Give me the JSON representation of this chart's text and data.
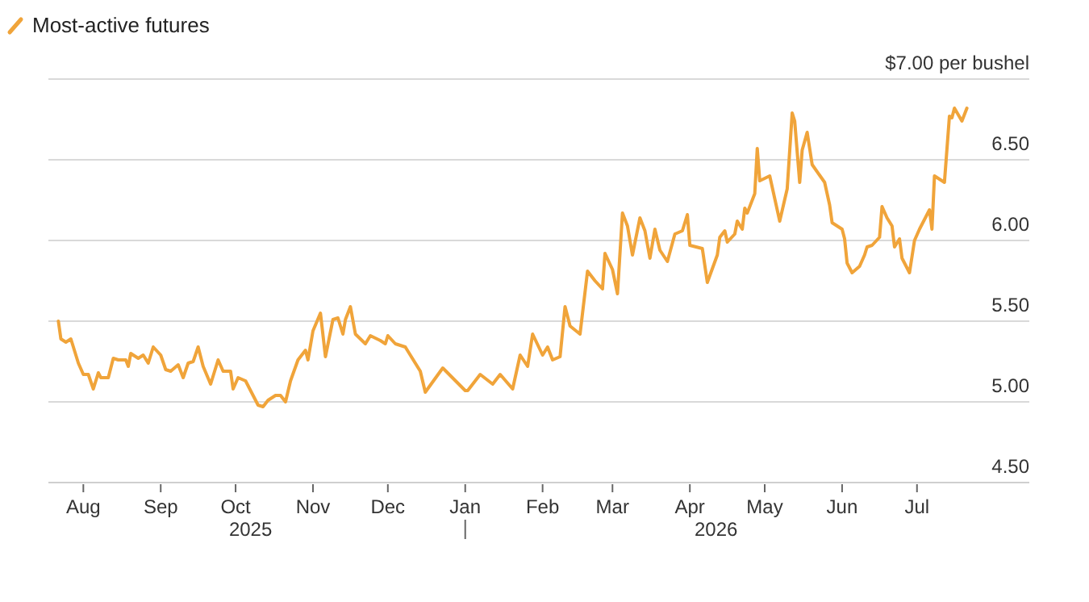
{
  "chart_data": {
    "type": "line",
    "legend": "top left",
    "grid": "y",
    "annotations": [
      "2025",
      "2026"
    ],
    "xlim": [
      "2025-07-18",
      "2026-08-15"
    ],
    "xticks": [
      {
        "value": "2025-08-01",
        "label": "Aug"
      },
      {
        "value": "2025-09-01",
        "label": "Sep"
      },
      {
        "value": "2025-10-01",
        "label": "Oct"
      },
      {
        "value": "2025-11-01",
        "label": "Nov"
      },
      {
        "value": "2025-12-01",
        "label": "Dec"
      },
      {
        "value": "2026-01-01",
        "label": "Jan"
      },
      {
        "value": "2026-02-01",
        "label": "Feb"
      },
      {
        "value": "2026-03-01",
        "label": "Mar"
      },
      {
        "value": "2026-04-01",
        "label": "Apr"
      },
      {
        "value": "2026-05-01",
        "label": "May"
      },
      {
        "value": "2026-06-01",
        "label": "Jun"
      },
      {
        "value": "2026-07-01",
        "label": "Jul"
      }
    ],
    "ylim": [
      4.5,
      7
    ],
    "yticks": [
      {
        "value": 4.5,
        "label": "4.50"
      },
      {
        "value": 5,
        "label": "5.00"
      },
      {
        "value": 5.5,
        "label": "5.50"
      },
      {
        "value": 6,
        "label": "6.00"
      },
      {
        "value": 6.5,
        "label": "6.50"
      },
      {
        "value": 7,
        "label": "$7.00 per bushel"
      }
    ],
    "x": [
      "2025-07-22",
      "2025-07-23",
      "2025-07-25",
      "2025-07-27",
      "2025-07-30",
      "2025-08-01",
      "2025-08-03",
      "2025-08-05",
      "2025-08-07",
      "2025-08-08",
      "2025-08-11",
      "2025-08-13",
      "2025-08-15",
      "2025-08-18",
      "2025-08-19",
      "2025-08-20",
      "2025-08-23",
      "2025-08-25",
      "2025-08-27",
      "2025-08-29",
      "2025-09-01",
      "2025-09-03",
      "2025-09-05",
      "2025-09-08",
      "2025-09-10",
      "2025-09-12",
      "2025-09-14",
      "2025-09-16",
      "2025-09-18",
      "2025-09-21",
      "2025-09-24",
      "2025-09-26",
      "2025-09-29",
      "2025-09-30",
      "2025-10-02",
      "2025-10-05",
      "2025-10-07",
      "2025-10-10",
      "2025-10-12",
      "2025-10-14",
      "2025-10-17",
      "2025-10-19",
      "2025-10-21",
      "2025-10-23",
      "2025-10-26",
      "2025-10-29",
      "2025-10-30",
      "2025-11-01",
      "2025-11-04",
      "2025-11-06",
      "2025-11-09",
      "2025-11-11",
      "2025-11-13",
      "2025-11-14",
      "2025-11-16",
      "2025-11-18",
      "2025-11-22",
      "2025-11-24",
      "2025-11-28",
      "2025-11-30",
      "2025-12-01",
      "2025-12-04",
      "2025-12-08",
      "2025-12-10",
      "2025-12-14",
      "2025-12-16",
      "2025-12-23",
      "2026-01-01",
      "2026-01-02",
      "2026-01-07",
      "2026-01-12",
      "2026-01-15",
      "2026-01-20",
      "2026-01-23",
      "2026-01-26",
      "2026-01-28",
      "2026-02-01",
      "2026-02-03",
      "2026-02-05",
      "2026-02-08",
      "2026-02-10",
      "2026-02-12",
      "2026-02-16",
      "2026-02-19",
      "2026-02-22",
      "2026-02-25",
      "2026-02-26",
      "2026-03-01",
      "2026-03-03",
      "2026-03-05",
      "2026-03-07",
      "2026-03-09",
      "2026-03-12",
      "2026-03-14",
      "2026-03-16",
      "2026-03-18",
      "2026-03-20",
      "2026-03-23",
      "2026-03-26",
      "2026-03-29",
      "2026-03-31",
      "2026-04-01",
      "2026-04-06",
      "2026-04-08",
      "2026-04-12",
      "2026-04-13",
      "2026-04-15",
      "2026-04-16",
      "2026-04-19",
      "2026-04-20",
      "2026-04-22",
      "2026-04-23",
      "2026-04-24",
      "2026-04-27",
      "2026-04-28",
      "2026-04-29",
      "2026-05-03",
      "2026-05-07",
      "2026-05-10",
      "2026-05-12",
      "2026-05-13",
      "2026-05-15",
      "2026-05-16",
      "2026-05-18",
      "2026-05-20",
      "2026-05-25",
      "2026-05-27",
      "2026-05-28",
      "2026-06-01",
      "2026-06-02",
      "2026-06-03",
      "2026-06-05",
      "2026-06-08",
      "2026-06-10",
      "2026-06-11",
      "2026-06-13",
      "2026-06-16",
      "2026-06-17",
      "2026-06-19",
      "2026-06-21",
      "2026-06-22",
      "2026-06-24",
      "2026-06-25",
      "2026-06-28",
      "2026-06-30",
      "2026-07-02",
      "2026-07-06",
      "2026-07-07",
      "2026-07-08",
      "2026-07-12",
      "2026-07-14",
      "2026-07-15",
      "2026-07-16",
      "2026-07-19",
      "2026-07-21"
    ],
    "series": [
      {
        "name": "Most-active futures",
        "color": "#f0a43a",
        "values": [
          5.5,
          5.39,
          5.37,
          5.39,
          5.24,
          5.17,
          5.17,
          5.08,
          5.18,
          5.15,
          5.15,
          5.27,
          5.26,
          5.26,
          5.22,
          5.3,
          5.27,
          5.29,
          5.24,
          5.34,
          5.29,
          5.2,
          5.19,
          5.23,
          5.15,
          5.24,
          5.25,
          5.34,
          5.22,
          5.11,
          5.26,
          5.19,
          5.19,
          5.08,
          5.15,
          5.13,
          5.07,
          4.98,
          4.97,
          5.01,
          5.04,
          5.04,
          5.0,
          5.13,
          5.26,
          5.32,
          5.26,
          5.44,
          5.55,
          5.28,
          5.51,
          5.52,
          5.42,
          5.51,
          5.59,
          5.42,
          5.36,
          5.41,
          5.38,
          5.36,
          5.41,
          5.36,
          5.34,
          5.29,
          5.19,
          5.06,
          5.21,
          5.07,
          5.07,
          5.17,
          5.11,
          5.17,
          5.08,
          5.29,
          5.22,
          5.42,
          5.29,
          5.34,
          5.26,
          5.28,
          5.59,
          5.47,
          5.42,
          5.81,
          5.75,
          5.7,
          5.92,
          5.82,
          5.67,
          6.17,
          6.09,
          5.91,
          6.14,
          6.06,
          5.89,
          6.07,
          5.94,
          5.87,
          6.04,
          6.06,
          6.16,
          5.97,
          5.95,
          5.74,
          5.91,
          6.02,
          6.06,
          5.99,
          6.04,
          6.12,
          6.07,
          6.2,
          6.17,
          6.29,
          6.57,
          6.37,
          6.4,
          6.12,
          6.32,
          6.79,
          6.74,
          6.36,
          6.56,
          6.67,
          6.47,
          6.36,
          6.22,
          6.11,
          6.07,
          6.01,
          5.86,
          5.8,
          5.84,
          5.91,
          5.96,
          5.97,
          6.02,
          6.21,
          6.14,
          6.09,
          5.96,
          6.01,
          5.89,
          5.8,
          6.0,
          6.07,
          6.19,
          6.07,
          6.4,
          6.36,
          6.77,
          6.76,
          6.82,
          6.74,
          6.82
        ]
      }
    ]
  }
}
